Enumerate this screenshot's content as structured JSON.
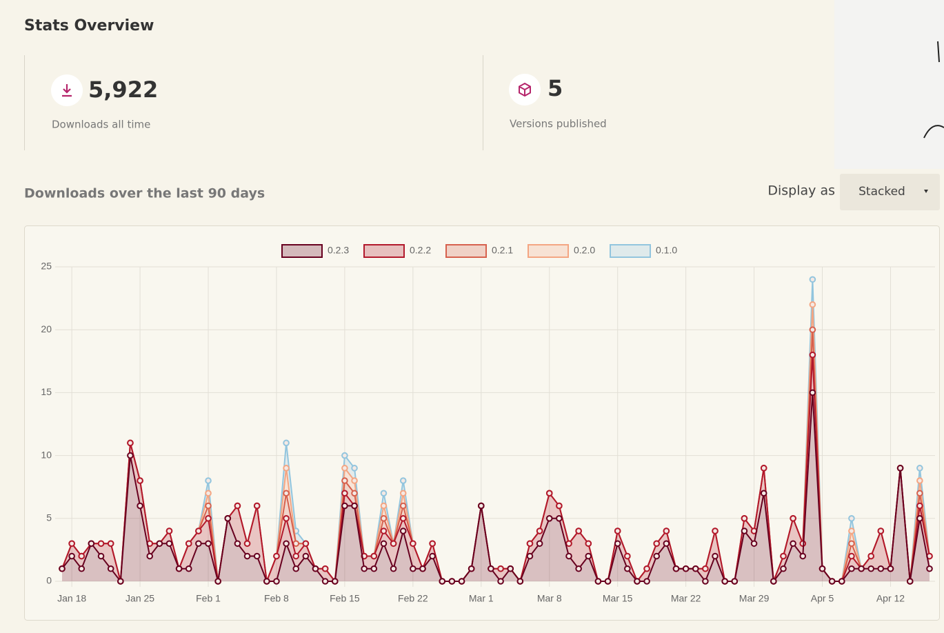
{
  "header": {
    "title": "Stats Overview"
  },
  "stats": [
    {
      "value": "5,922",
      "label": "Downloads all time"
    },
    {
      "value": "5",
      "label": "Versions published"
    }
  ],
  "section": {
    "title": "Downloads over the last 90 days",
    "control_label": "Display as",
    "control_value": "Stacked"
  },
  "chart_data": {
    "type": "stacked-area-line",
    "categories": [
      null,
      "Jan 18",
      null,
      null,
      null,
      null,
      null,
      null,
      "Jan 25",
      null,
      null,
      null,
      null,
      null,
      null,
      "Feb 1",
      null,
      null,
      null,
      null,
      null,
      null,
      "Feb 8",
      null,
      null,
      null,
      null,
      null,
      null,
      "Feb 15",
      null,
      null,
      null,
      null,
      null,
      null,
      "Feb 22",
      null,
      null,
      null,
      null,
      null,
      null,
      "Mar 1",
      null,
      null,
      null,
      null,
      null,
      null,
      "Mar 8",
      null,
      null,
      null,
      null,
      null,
      null,
      "Mar 15",
      null,
      null,
      null,
      null,
      null,
      null,
      "Mar 22",
      null,
      null,
      null,
      null,
      null,
      null,
      "Mar 29",
      null,
      null,
      null,
      null,
      null,
      null,
      "Apr 5",
      null,
      null,
      null,
      null,
      null,
      null,
      "Apr 12",
      null,
      null,
      null,
      null
    ],
    "series": [
      {
        "name": "0.2.3",
        "color": "#67001f",
        "values": [
          1,
          2,
          1,
          3,
          2,
          1,
          0,
          10,
          6,
          2,
          3,
          3,
          1,
          1,
          3,
          3,
          0,
          5,
          3,
          2,
          2,
          0,
          0,
          3,
          1,
          2,
          1,
          0,
          0,
          6,
          6,
          1,
          1,
          3,
          1,
          4,
          1,
          1,
          2,
          0,
          0,
          0,
          1,
          6,
          1,
          0,
          1,
          0,
          2,
          3,
          5,
          5,
          2,
          1,
          2,
          0,
          0,
          3,
          1,
          0,
          0,
          2,
          3,
          1,
          1,
          1,
          0,
          2,
          0,
          0,
          4,
          3,
          7,
          0,
          1,
          3,
          2,
          15,
          1,
          0,
          0,
          1,
          1,
          1,
          1,
          1,
          9,
          0,
          5,
          1
        ]
      },
      {
        "name": "0.2.2",
        "color": "#b2182b",
        "values": [
          0,
          1,
          1,
          0,
          1,
          2,
          0,
          1,
          2,
          1,
          0,
          1,
          0,
          2,
          1,
          2,
          0,
          0,
          3,
          1,
          4,
          0,
          2,
          2,
          1,
          1,
          0,
          1,
          0,
          1,
          0,
          1,
          1,
          1,
          2,
          1,
          2,
          0,
          1,
          0,
          0,
          0,
          0,
          0,
          0,
          1,
          0,
          0,
          1,
          1,
          2,
          1,
          1,
          3,
          1,
          0,
          0,
          1,
          1,
          0,
          1,
          1,
          1,
          0,
          0,
          0,
          1,
          2,
          0,
          0,
          1,
          1,
          2,
          0,
          1,
          2,
          1,
          3,
          0,
          0,
          0,
          1,
          0,
          1,
          3,
          0,
          0,
          0,
          1,
          1
        ]
      },
      {
        "name": "0.2.1",
        "color": "#d6604d",
        "values": [
          0,
          0,
          0,
          0,
          0,
          0,
          0,
          0,
          0,
          0,
          0,
          0,
          0,
          0,
          0,
          1,
          0,
          0,
          0,
          0,
          0,
          0,
          0,
          2,
          1,
          0,
          0,
          0,
          0,
          1,
          1,
          0,
          0,
          1,
          0,
          1,
          0,
          0,
          0,
          0,
          0,
          0,
          0,
          0,
          0,
          0,
          0,
          0,
          0,
          0,
          0,
          0,
          0,
          0,
          0,
          0,
          0,
          0,
          0,
          0,
          0,
          0,
          0,
          0,
          0,
          0,
          0,
          0,
          0,
          0,
          0,
          0,
          0,
          0,
          0,
          0,
          0,
          2,
          0,
          0,
          0,
          1,
          0,
          0,
          0,
          0,
          0,
          0,
          1,
          0
        ]
      },
      {
        "name": "0.2.0",
        "color": "#f4a582",
        "values": [
          0,
          0,
          0,
          0,
          0,
          0,
          0,
          0,
          0,
          0,
          0,
          0,
          0,
          0,
          0,
          1,
          0,
          0,
          0,
          0,
          0,
          0,
          0,
          2,
          0,
          0,
          0,
          0,
          0,
          1,
          1,
          0,
          0,
          1,
          0,
          1,
          0,
          0,
          0,
          0,
          0,
          0,
          0,
          0,
          0,
          0,
          0,
          0,
          0,
          0,
          0,
          0,
          0,
          0,
          0,
          0,
          0,
          0,
          0,
          0,
          0,
          0,
          0,
          0,
          0,
          0,
          0,
          0,
          0,
          0,
          0,
          0,
          0,
          0,
          0,
          0,
          0,
          2,
          0,
          0,
          0,
          1,
          0,
          0,
          0,
          0,
          0,
          0,
          1,
          0
        ]
      },
      {
        "name": "0.1.0",
        "color": "#92c5de",
        "values": [
          0,
          0,
          0,
          0,
          0,
          0,
          0,
          0,
          0,
          0,
          0,
          0,
          0,
          0,
          0,
          1,
          0,
          0,
          0,
          0,
          0,
          0,
          0,
          2,
          1,
          0,
          0,
          0,
          0,
          1,
          1,
          0,
          0,
          1,
          0,
          1,
          0,
          0,
          0,
          0,
          0,
          0,
          0,
          0,
          0,
          0,
          0,
          0,
          0,
          0,
          0,
          0,
          0,
          0,
          0,
          0,
          0,
          0,
          0,
          0,
          0,
          0,
          0,
          0,
          0,
          0,
          0,
          0,
          0,
          0,
          0,
          0,
          0,
          0,
          0,
          0,
          0,
          2,
          0,
          0,
          0,
          1,
          0,
          0,
          0,
          0,
          0,
          0,
          1,
          0
        ]
      }
    ],
    "ylim": [
      0,
      25
    ],
    "yticks": [
      0,
      5,
      10,
      15,
      20,
      25
    ],
    "grid": true,
    "legend": "top"
  }
}
